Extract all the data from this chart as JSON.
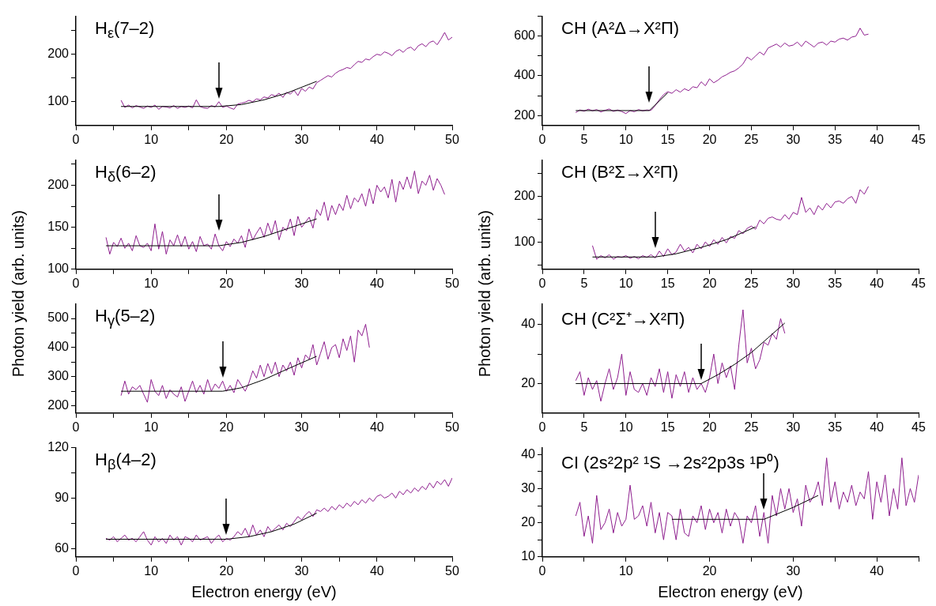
{
  "chart_data": [
    {
      "type": "line",
      "title": "H$_{ε}$(7–2)",
      "marker": "none",
      "xlim": [
        0,
        50
      ],
      "xticks": [
        0,
        {
          "value": 5,
          "label": null
        },
        10,
        {
          "value": 15,
          "label": null
        },
        20,
        {
          "value": 25,
          "label": null
        },
        30,
        {
          "value": 35,
          "label": null
        },
        40,
        {
          "value": 45,
          "label": null
        },
        50
      ],
      "ylim": [
        50,
        280
      ],
      "yticks": [
        100,
        {
          "value": 150,
          "label": null
        },
        200,
        {
          "value": 250,
          "label": null
        }
      ],
      "series": [
        {
          "color": "#8e1e8e",
          "x": [
            6,
            6.5,
            7,
            7.5,
            8,
            8.5,
            9,
            9.5,
            10,
            10.5,
            11,
            11.5,
            12,
            12.5,
            13,
            13.5,
            14,
            14.5,
            15,
            15.5,
            16,
            16.5,
            17,
            17.5,
            18,
            18.5,
            19,
            19.5,
            20,
            20.5,
            21,
            21.5,
            22,
            22.5,
            23,
            23.5,
            24,
            24.5,
            25,
            25.5,
            26,
            26.5,
            27,
            27.5,
            28,
            28.5,
            29,
            29.5,
            30,
            30.5,
            31,
            31.5,
            32,
            32.5,
            33,
            33.5,
            34,
            34.5,
            35,
            35.5,
            36,
            36.5,
            37,
            37.5,
            38,
            38.5,
            39,
            39.5,
            40,
            40.5,
            41,
            41.5,
            42,
            42.5,
            43,
            43.5,
            44,
            44.5,
            45,
            45.5,
            46,
            46.5,
            47,
            47.5,
            48,
            48.5,
            49,
            49.5,
            50
          ],
          "values": [
            103,
            88,
            93,
            87,
            92,
            89,
            86,
            91,
            88,
            93,
            84,
            90,
            89,
            87,
            92,
            86,
            90,
            88,
            91,
            87,
            104,
            90,
            87,
            86,
            92,
            89,
            100,
            88,
            91,
            87,
            84,
            95,
            97,
            99,
            103,
            100,
            106,
            104,
            110,
            108,
            115,
            112,
            118,
            109,
            120,
            116,
            124,
            113,
            128,
            122,
            131,
            127,
            140,
            145,
            150,
            155,
            152,
            160,
            165,
            168,
            172,
            170,
            178,
            185,
            183,
            190,
            188,
            195,
            200,
            198,
            205,
            202,
            197,
            206,
            210,
            204,
            212,
            215,
            208,
            218,
            222,
            216,
            225,
            228,
            220,
            232,
            246,
            230,
            236
          ]
        },
        {
          "color": "#000000",
          "x": [
            6,
            19,
            22,
            25,
            28,
            32
          ],
          "values": [
            90,
            90,
            94,
            104,
            118,
            143
          ]
        }
      ]
    },
    {
      "type": "line",
      "title": "H$_{δ}$(6–2)",
      "ylabel": "Photon yield (arb. units)",
      "marker": "none",
      "xlim": [
        0,
        50
      ],
      "xticks": [
        0,
        {
          "value": 5,
          "label": null
        },
        10,
        {
          "value": 15,
          "label": null
        },
        20,
        {
          "value": 25,
          "label": null
        },
        30,
        {
          "value": 35,
          "label": null
        },
        40,
        {
          "value": 45,
          "label": null
        },
        50
      ],
      "ylim": [
        100,
        230
      ],
      "yticks": [
        100,
        {
          "value": 125,
          "label": null
        },
        150,
        {
          "value": 175,
          "label": null
        },
        200,
        {
          "value": 225,
          "label": null
        }
      ],
      "series": [
        {
          "color": "#8e1e8e",
          "x": [
            4,
            4.5,
            5,
            5.5,
            6,
            6.5,
            7,
            7.5,
            8,
            8.5,
            9,
            9.5,
            10,
            10.5,
            11,
            11.5,
            12,
            12.5,
            13,
            13.5,
            14,
            14.5,
            15,
            15.5,
            16,
            16.5,
            17,
            17.5,
            18,
            18.5,
            19,
            19.5,
            20,
            20.5,
            21,
            21.5,
            22,
            22.5,
            23,
            23.5,
            24,
            24.5,
            25,
            25.5,
            26,
            26.5,
            27,
            27.5,
            28,
            28.5,
            29,
            29.5,
            30,
            30.5,
            31,
            31.5,
            32,
            32.5,
            33,
            33.5,
            34,
            34.5,
            35,
            35.5,
            36,
            36.5,
            37,
            37.5,
            38,
            38.5,
            39,
            39.5,
            40,
            40.5,
            41,
            41.5,
            42,
            42.5,
            43,
            43.5,
            44,
            44.5,
            45,
            45.5,
            46,
            46.5,
            47,
            47.5,
            48,
            48.5,
            49
          ],
          "values": [
            138,
            118,
            132,
            127,
            137,
            125,
            131,
            122,
            140,
            128,
            126,
            131,
            122,
            154,
            124,
            145,
            118,
            135,
            128,
            141,
            127,
            139,
            124,
            133,
            121,
            139,
            128,
            130,
            124,
            142,
            128,
            122,
            133,
            127,
            136,
            131,
            140,
            126,
            148,
            135,
            143,
            150,
            138,
            155,
            142,
            158,
            135,
            150,
            146,
            160,
            140,
            163,
            150,
            156,
            162,
            149,
            171,
            164,
            180,
            158,
            176,
            165,
            178,
            170,
            188,
            172,
            185,
            180,
            190,
            175,
            196,
            178,
            200,
            192,
            198,
            185,
            207,
            180,
            205,
            195,
            210,
            196,
            217,
            190,
            205,
            200,
            212,
            194,
            208,
            200,
            189
          ]
        },
        {
          "color": "#000000",
          "x": [
            4,
            19,
            22,
            25,
            28,
            32
          ],
          "values": [
            128,
            128,
            132,
            139,
            148,
            160
          ]
        }
      ]
    },
    {
      "type": "line",
      "title": "H$_{γ}$(5–2)",
      "marker": "none",
      "xlim": [
        0,
        50
      ],
      "xticks": [
        0,
        {
          "value": 5,
          "label": null
        },
        10,
        {
          "value": 15,
          "label": null
        },
        20,
        {
          "value": 25,
          "label": null
        },
        30,
        {
          "value": 35,
          "label": null
        },
        40,
        {
          "value": 45,
          "label": null
        },
        50
      ],
      "ylim": [
        175,
        550
      ],
      "yticks": [
        200,
        {
          "value": 250,
          "label": null
        },
        300,
        {
          "value": 350,
          "label": null
        },
        400,
        {
          "value": 450,
          "label": null
        },
        500
      ],
      "series": [
        {
          "color": "#8e1e8e",
          "x": [
            6,
            6.5,
            7,
            7.5,
            8,
            8.5,
            9,
            9.5,
            10,
            10.5,
            11,
            11.5,
            12,
            12.5,
            13,
            13.5,
            14,
            14.5,
            15,
            15.5,
            16,
            16.5,
            17,
            17.5,
            18,
            18.5,
            19,
            19.5,
            20,
            20.5,
            21,
            21.5,
            22,
            22.5,
            23,
            23.5,
            24,
            24.5,
            25,
            25.5,
            26,
            26.5,
            27,
            27.5,
            28,
            28.5,
            29,
            29.5,
            30,
            30.5,
            31,
            31.5,
            32,
            32.5,
            33,
            33.5,
            34,
            34.5,
            35,
            35.5,
            36,
            36.5,
            37,
            37.5,
            38,
            38.5,
            39
          ],
          "values": [
            235,
            285,
            240,
            265,
            255,
            270,
            240,
            212,
            290,
            250,
            235,
            270,
            225,
            255,
            240,
            230,
            265,
            215,
            250,
            285,
            245,
            270,
            240,
            290,
            250,
            275,
            260,
            285,
            250,
            270,
            245,
            290,
            270,
            250,
            280,
            320,
            295,
            340,
            300,
            345,
            310,
            350,
            300,
            340,
            320,
            350,
            305,
            365,
            330,
            375,
            360,
            410,
            340,
            380,
            420,
            360,
            400,
            410,
            365,
            430,
            390,
            440,
            350,
            460,
            440,
            480,
            400
          ]
        },
        {
          "color": "#000000",
          "x": [
            6,
            19.5,
            22,
            25,
            28,
            32
          ],
          "values": [
            250,
            250,
            262,
            290,
            325,
            370
          ]
        }
      ]
    },
    {
      "type": "line",
      "title": "H$_{β}$(4–2)",
      "xlabel": "Electron energy (eV)",
      "marker": "none",
      "xlim": [
        0,
        50
      ],
      "xticks": [
        0,
        {
          "value": 5,
          "label": null
        },
        10,
        {
          "value": 15,
          "label": null
        },
        20,
        {
          "value": 25,
          "label": null
        },
        30,
        {
          "value": 35,
          "label": null
        },
        40,
        {
          "value": 45,
          "label": null
        },
        50
      ],
      "ylim": [
        55,
        120
      ],
      "yticks": [
        60,
        {
          "value": 75,
          "label": null
        },
        90,
        {
          "value": 105,
          "label": null
        },
        120
      ],
      "series": [
        {
          "color": "#8e1e8e",
          "x": [
            4,
            4.5,
            5,
            5.5,
            6,
            6.5,
            7,
            7.5,
            8,
            8.5,
            9,
            9.5,
            10,
            10.5,
            11,
            11.5,
            12,
            12.5,
            13,
            13.5,
            14,
            14.5,
            15,
            15.5,
            16,
            16.5,
            17,
            17.5,
            18,
            18.5,
            19,
            19.5,
            20,
            20.5,
            21,
            21.5,
            22,
            22.5,
            23,
            23.5,
            24,
            24.5,
            25,
            25.5,
            26,
            26.5,
            27,
            27.5,
            28,
            28.5,
            29,
            29.5,
            30,
            30.5,
            31,
            31.5,
            32,
            32.5,
            33,
            33.5,
            34,
            34.5,
            35,
            35.5,
            36,
            36.5,
            37,
            37.5,
            38,
            38.5,
            39,
            39.5,
            40,
            40.5,
            41,
            41.5,
            42,
            42.5,
            43,
            43.5,
            44,
            44.5,
            45,
            45.5,
            46,
            46.5,
            47,
            47.5,
            48,
            48.5,
            49,
            49.5,
            50
          ],
          "values": [
            66,
            65,
            67,
            64,
            66,
            68,
            65,
            66,
            64,
            67,
            70,
            65,
            62,
            67,
            64,
            66,
            63,
            68,
            65,
            67,
            62,
            67,
            66,
            64,
            68,
            65,
            66,
            67,
            63,
            66,
            68,
            64,
            66,
            65,
            67,
            70,
            68,
            72,
            67,
            74,
            68,
            71,
            67,
            73,
            70,
            72,
            74,
            71,
            75,
            73,
            76,
            79,
            77,
            80,
            82,
            79,
            83,
            82,
            84,
            82,
            85,
            83,
            86,
            84,
            87,
            85,
            88,
            86,
            89,
            87,
            90,
            88,
            91,
            92,
            90,
            91,
            93,
            90,
            94,
            92,
            95,
            93,
            96,
            94,
            97,
            95,
            99,
            96,
            100,
            98,
            101,
            97,
            102
          ]
        },
        {
          "color": "#000000",
          "x": [
            4,
            20,
            23,
            26,
            29,
            32
          ],
          "values": [
            65.5,
            65.5,
            67,
            70,
            74.5,
            81
          ]
        }
      ]
    },
    {
      "type": "line",
      "title": "CH (A²Δ→X²Π)",
      "marker": "none",
      "xlim": [
        0,
        45
      ],
      "xticks": [
        0,
        5,
        10,
        15,
        20,
        25,
        30,
        35,
        40,
        45
      ],
      "ylim": [
        150,
        700
      ],
      "yticks": [
        200,
        {
          "value": 300,
          "label": null
        },
        400,
        {
          "value": 500,
          "label": null
        },
        600,
        {
          "value": 700,
          "label": null
        }
      ],
      "series": [
        {
          "color": "#8e1e8e",
          "x": [
            4,
            4.5,
            5,
            5.5,
            6,
            6.5,
            7,
            7.5,
            8,
            8.5,
            9,
            9.5,
            10,
            10.5,
            11,
            11.5,
            12,
            12.5,
            13,
            13.5,
            14,
            14.5,
            15,
            15.5,
            16,
            16.5,
            17,
            17.5,
            18,
            18.5,
            19,
            19.5,
            20,
            20.5,
            21,
            21.5,
            22,
            22.5,
            23,
            23.5,
            24,
            24.5,
            25,
            25.5,
            26,
            26.5,
            27,
            27.5,
            28,
            28.5,
            29,
            29.5,
            30,
            30.5,
            31,
            31.5,
            32,
            32.5,
            33,
            33.5,
            34,
            34.5,
            35,
            35.5,
            36,
            36.5,
            37,
            37.5,
            38,
            38.5,
            39
          ],
          "values": [
            215,
            228,
            222,
            232,
            224,
            230,
            218,
            226,
            233,
            221,
            228,
            220,
            210,
            225,
            219,
            230,
            224,
            228,
            226,
            250,
            280,
            305,
            320,
            312,
            330,
            318,
            335,
            325,
            345,
            340,
            370,
            350,
            385,
            365,
            378,
            395,
            405,
            418,
            425,
            440,
            460,
            495,
            480,
            500,
            520,
            505,
            540,
            550,
            560,
            545,
            565,
            550,
            555,
            570,
            548,
            575,
            560,
            545,
            565,
            570,
            555,
            575,
            570,
            585,
            590,
            580,
            595,
            600,
            640,
            605,
            610
          ]
        },
        {
          "color": "#000000",
          "x": [
            4,
            12.8,
            15
          ],
          "values": [
            225,
            225,
            315
          ]
        }
      ]
    },
    {
      "type": "line",
      "title": "CH (B²Σ→X²Π)",
      "ylabel": "Photon yield (arb. units)",
      "marker": "none",
      "xlim": [
        0,
        45
      ],
      "xticks": [
        0,
        5,
        10,
        15,
        20,
        25,
        30,
        35,
        40,
        45
      ],
      "ylim": [
        40,
        280
      ],
      "yticks": [
        {
          "value": 50,
          "label": null
        },
        100,
        {
          "value": 150,
          "label": null
        },
        200,
        {
          "value": 250,
          "label": null
        }
      ],
      "series": [
        {
          "color": "#8e1e8e",
          "x": [
            6,
            6.5,
            7,
            7.5,
            8,
            8.5,
            9,
            9.5,
            10,
            10.5,
            11,
            11.5,
            12,
            12.5,
            13,
            13.5,
            14,
            14.5,
            15,
            15.5,
            16,
            16.5,
            17,
            17.5,
            18,
            18.5,
            19,
            19.5,
            20,
            20.5,
            21,
            21.5,
            22,
            22.5,
            23,
            23.5,
            24,
            24.5,
            25,
            25.5,
            26,
            26.5,
            27,
            27.5,
            28,
            28.5,
            29,
            29.5,
            30,
            30.5,
            31,
            31.5,
            32,
            32.5,
            33,
            33.5,
            34,
            34.5,
            35,
            35.5,
            36,
            36.5,
            37,
            37.5,
            38,
            38.5,
            39
          ],
          "values": [
            92,
            62,
            70,
            65,
            72,
            62,
            68,
            66,
            70,
            64,
            68,
            63,
            70,
            66,
            72,
            65,
            80,
            68,
            85,
            72,
            78,
            95,
            80,
            88,
            76,
            95,
            85,
            100,
            90,
            105,
            95,
            110,
            98,
            112,
            108,
            125,
            118,
            130,
            135,
            128,
            148,
            140,
            152,
            155,
            150,
            148,
            160,
            150,
            165,
            160,
            198,
            165,
            175,
            160,
            180,
            170,
            185,
            175,
            188,
            190,
            185,
            195,
            200,
            185,
            215,
            205,
            222
          ]
        },
        {
          "color": "#000000",
          "x": [
            6,
            13.5,
            16,
            19,
            22,
            25.5
          ],
          "values": [
            67,
            67,
            74,
            88,
            105,
            133
          ]
        }
      ]
    },
    {
      "type": "line",
      "title": "CH (C²Σ⁺→X²Π)",
      "marker": "none",
      "xlim": [
        0,
        45
      ],
      "xticks": [
        0,
        5,
        10,
        15,
        20,
        25,
        30,
        35,
        40,
        45
      ],
      "ylim": [
        10,
        47
      ],
      "yticks": [
        20,
        {
          "value": 30,
          "label": null
        },
        40
      ],
      "series": [
        {
          "color": "#8e1e8e",
          "x": [
            4,
            4.5,
            5,
            5.5,
            6,
            6.5,
            7,
            7.5,
            8,
            8.5,
            9,
            9.5,
            10,
            10.5,
            11,
            11.5,
            12,
            12.5,
            13,
            13.5,
            14,
            14.5,
            15,
            15.5,
            16,
            16.5,
            17,
            17.5,
            18,
            18.5,
            19,
            19.5,
            20,
            20.5,
            21,
            21.5,
            22,
            22.5,
            23,
            23.5,
            24,
            24.5,
            25,
            25.5,
            26,
            26.5,
            27,
            27.5,
            28,
            28.5,
            29
          ],
          "values": [
            21,
            24,
            16,
            22,
            18,
            21,
            14,
            20,
            25,
            18,
            22,
            30,
            16,
            24,
            18,
            17,
            20,
            16,
            22,
            19,
            25,
            17,
            24,
            15,
            23,
            19,
            24,
            17,
            22,
            18,
            20,
            17,
            22,
            30,
            20,
            27,
            22,
            26,
            18,
            33,
            45,
            27,
            32,
            25,
            28,
            34,
            33,
            37,
            35,
            42,
            37
          ]
        },
        {
          "color": "#000000",
          "x": [
            4,
            19,
            21,
            23,
            25,
            27,
            29
          ],
          "values": [
            20,
            20,
            23,
            26.5,
            30.5,
            35.5,
            40.5
          ]
        }
      ]
    },
    {
      "type": "line",
      "title": "CI (2s²2p² ¹S →2s²2p3s ¹P⁰)",
      "xlabel": "Electron energy (eV)",
      "marker": "none",
      "xlim": [
        0,
        45
      ],
      "xticks": [
        0,
        {
          "value": 5,
          "label": null
        },
        10,
        {
          "value": 15,
          "label": null
        },
        20,
        {
          "value": 25,
          "label": null
        },
        30,
        {
          "value": 35,
          "label": null
        },
        40,
        {
          "value": 45,
          "label": null
        }
      ],
      "ylim": [
        10,
        42
      ],
      "yticks": [
        10,
        {
          "value": 15,
          "label": null
        },
        20,
        {
          "value": 25,
          "label": null
        },
        30,
        {
          "value": 35,
          "label": null
        },
        40
      ],
      "series": [
        {
          "color": "#8e1e8e",
          "x": [
            4,
            4.5,
            5,
            5.5,
            6,
            6.5,
            7,
            7.5,
            8,
            8.5,
            9,
            9.5,
            10,
            10.5,
            11,
            11.5,
            12,
            12.5,
            13,
            13.5,
            14,
            14.5,
            15,
            15.5,
            16,
            16.5,
            17,
            17.5,
            18,
            18.5,
            19,
            19.5,
            20,
            20.5,
            21,
            21.5,
            22,
            22.5,
            23,
            23.5,
            24,
            24.5,
            25,
            25.5,
            26,
            26.5,
            27,
            27.5,
            28,
            28.5,
            29,
            29.5,
            30,
            30.5,
            31,
            31.5,
            32,
            32.5,
            33,
            33.5,
            34,
            34.5,
            35,
            35.5,
            36,
            36.5,
            37,
            37.5,
            38,
            38.5,
            39,
            39.5,
            40,
            40.5,
            41,
            41.5,
            42,
            42.5,
            43,
            43.5,
            44,
            44.5,
            45
          ],
          "values": [
            22,
            26,
            16,
            22,
            14,
            28,
            18,
            20,
            24,
            17,
            23,
            19,
            21,
            31,
            21,
            22,
            25,
            19,
            26,
            17,
            23,
            15,
            23,
            22,
            15,
            24,
            17,
            16,
            22,
            20,
            25,
            18,
            24,
            20,
            23,
            17,
            24,
            19,
            23,
            21,
            14,
            22,
            20,
            25,
            16,
            23,
            14,
            28,
            22,
            30,
            24,
            30,
            23,
            27,
            19,
            31,
            26,
            28,
            32,
            25,
            39,
            26,
            32,
            24,
            29,
            26,
            31,
            25,
            29,
            27,
            35,
            21,
            32,
            26,
            34,
            22,
            30,
            24,
            39,
            25,
            30,
            26,
            34
          ]
        },
        {
          "color": "#000000",
          "x": [
            15.5,
            26.5,
            30,
            33
          ],
          "values": [
            21,
            21,
            24.5,
            28
          ]
        }
      ]
    }
  ]
}
